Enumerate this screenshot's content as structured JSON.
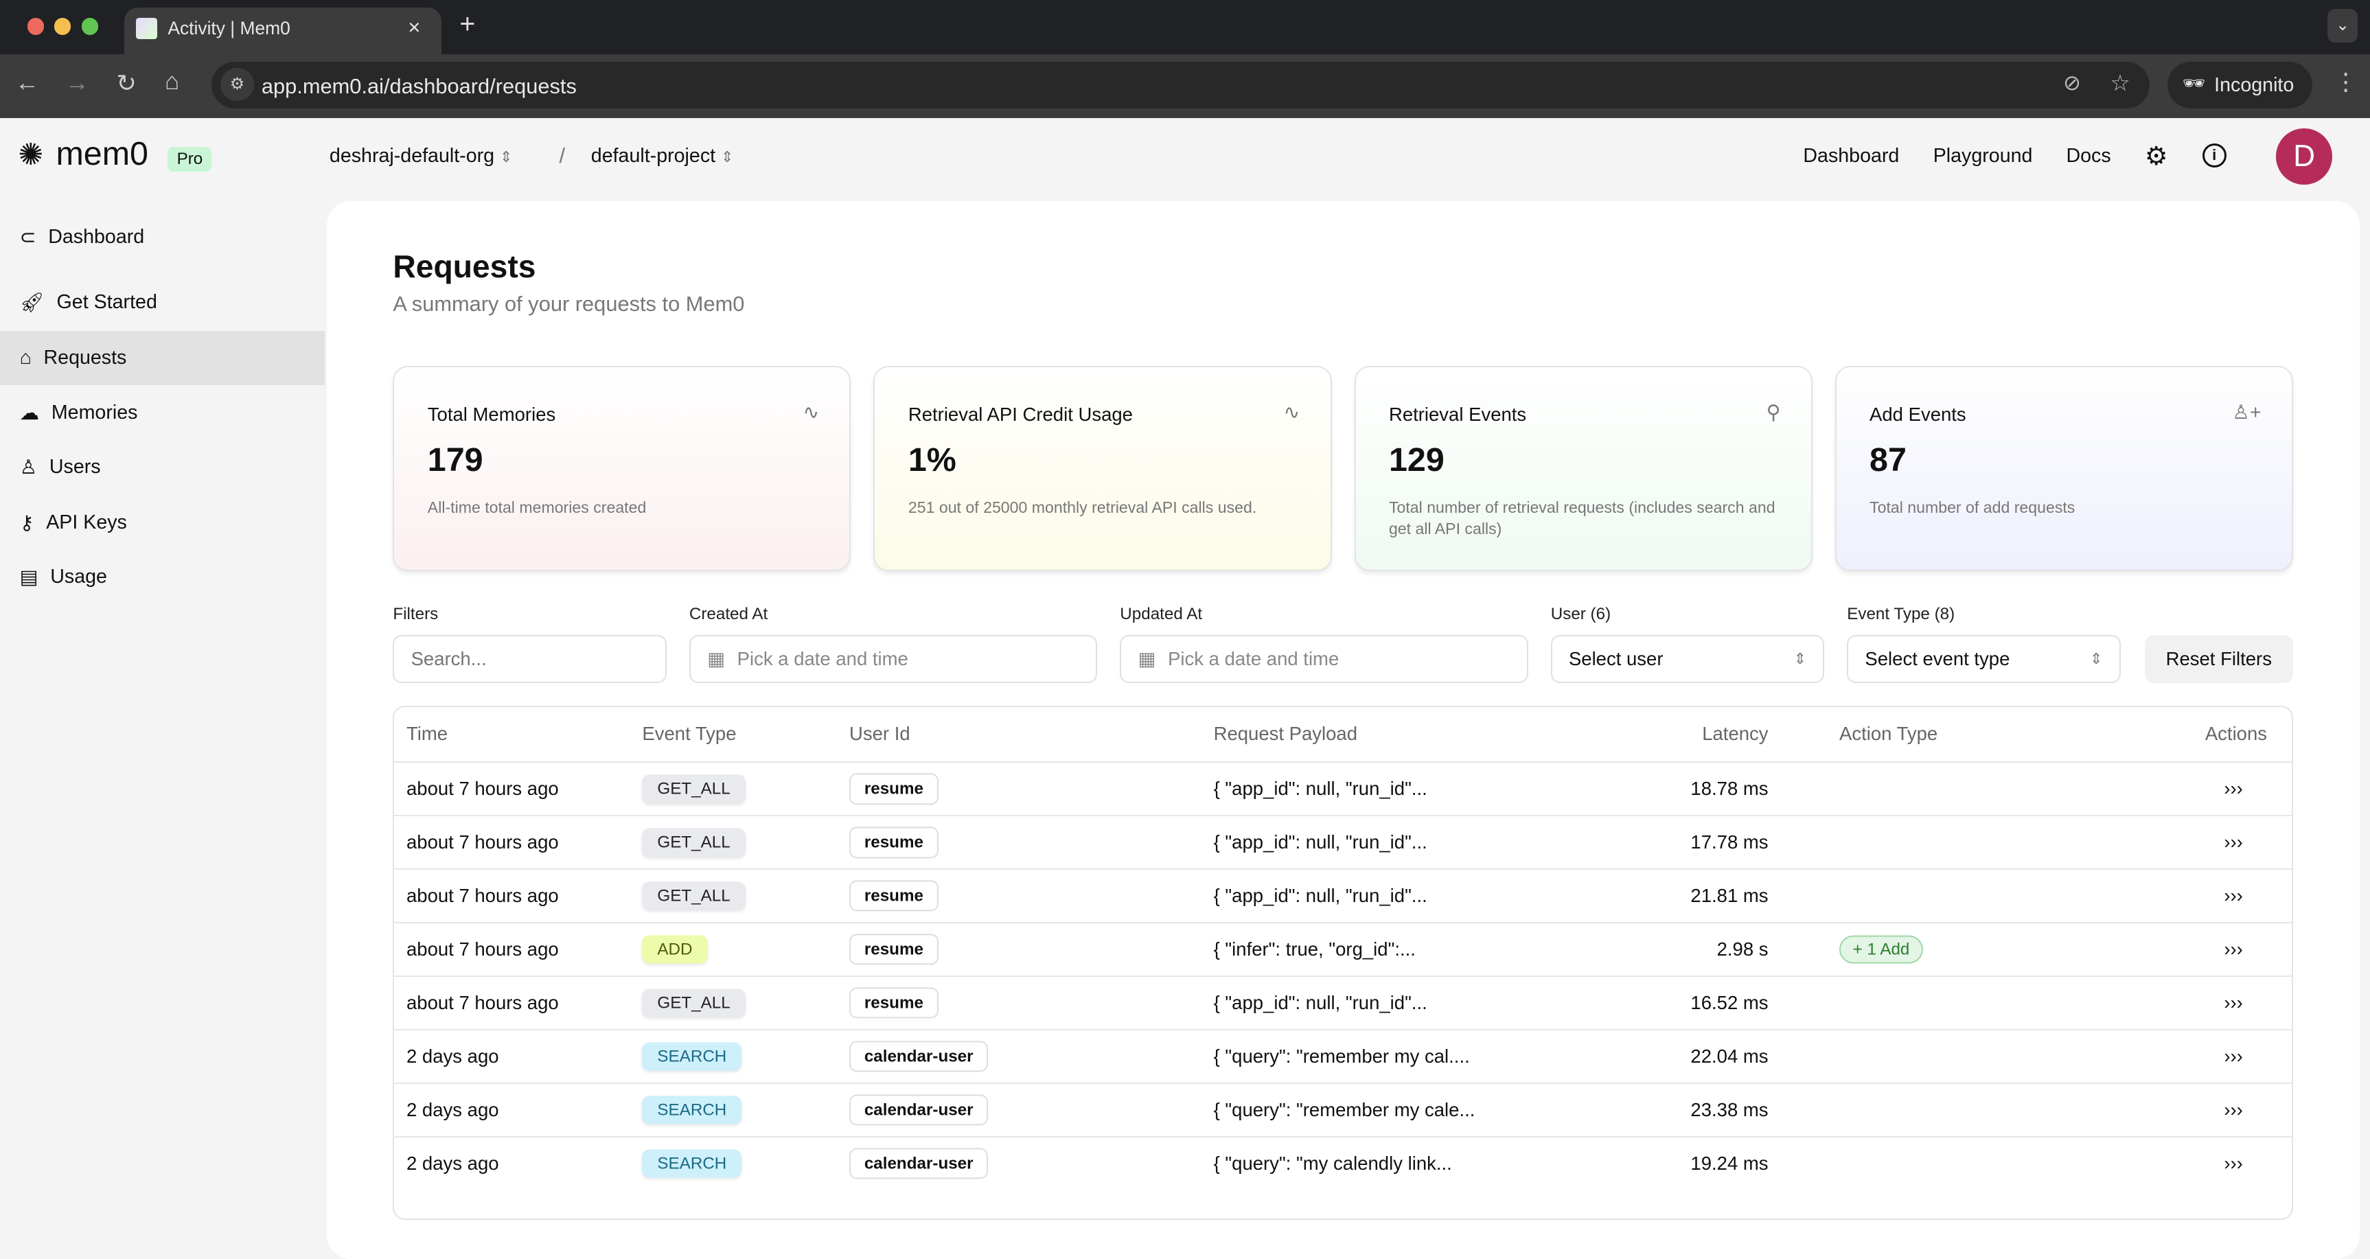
{
  "browser": {
    "tab_title": "Activity | Mem0",
    "url": "app.mem0.ai/dashboard/requests",
    "incognito_label": "Incognito"
  },
  "header": {
    "logo": "mem0",
    "plan_badge": "Pro",
    "org": "deshraj-default-org",
    "separator": "/",
    "project": "default-project",
    "nav": [
      "Dashboard",
      "Playground",
      "Docs"
    ],
    "avatar_initial": "D",
    "avatar_color": "#b52c5a"
  },
  "sidebar": {
    "items": [
      {
        "label": "Dashboard",
        "icon": "circle-chevron-left-icon"
      },
      {
        "label": "Get Started",
        "icon": "rocket-icon"
      },
      {
        "label": "Requests",
        "icon": "home-icon",
        "active": true
      },
      {
        "label": "Memories",
        "icon": "cloud-icon"
      },
      {
        "label": "Users",
        "icon": "user-icon"
      },
      {
        "label": "API Keys",
        "icon": "key-icon"
      },
      {
        "label": "Usage",
        "icon": "bar-chart-icon"
      }
    ]
  },
  "page": {
    "title": "Requests",
    "subtitle": "A summary of your requests to Mem0"
  },
  "cards": [
    {
      "title": "Total Memories",
      "value": "179",
      "desc": "All-time total memories created",
      "icon": "activity-icon",
      "tint": "#fbf0f0"
    },
    {
      "title": "Retrieval API Credit Usage",
      "value": "1%",
      "desc": "251 out of 25000 monthly retrieval API calls used.",
      "icon": "activity-icon",
      "tint": "#fdfbe8"
    },
    {
      "title": "Retrieval Events",
      "value": "129",
      "desc": "Total number of retrieval requests (includes search and get all API calls)",
      "icon": "search-icon",
      "tint": "#f0faf1"
    },
    {
      "title": "Add Events",
      "value": "87",
      "desc": "Total number of add requests",
      "icon": "user-plus-icon",
      "tint": "#eef0fc"
    }
  ],
  "filters": {
    "filters_label": "Filters",
    "search_placeholder": "Search...",
    "created_label": "Created At",
    "updated_label": "Updated At",
    "date_placeholder": "Pick a date and time",
    "user_label": "User (6)",
    "user_value": "Select user",
    "event_label": "Event Type (8)",
    "event_value": "Select event type",
    "reset_label": "Reset Filters"
  },
  "table": {
    "headers": [
      "Time",
      "Event Type",
      "User Id",
      "Request Payload",
      "Latency",
      "Action Type",
      "Actions"
    ],
    "rows": [
      {
        "time": "about 7 hours ago",
        "event": "GET_ALL",
        "user": "resume",
        "payload": "{ \"app_id\": null, \"run_id\"...",
        "latency": "18.78 ms",
        "action": "",
        "more": "›››"
      },
      {
        "time": "about 7 hours ago",
        "event": "GET_ALL",
        "user": "resume",
        "payload": "{ \"app_id\": null, \"run_id\"...",
        "latency": "17.78 ms",
        "action": "",
        "more": "›››"
      },
      {
        "time": "about 7 hours ago",
        "event": "GET_ALL",
        "user": "resume",
        "payload": "{ \"app_id\": null, \"run_id\"...",
        "latency": "21.81 ms",
        "action": "",
        "more": "›››"
      },
      {
        "time": "about 7 hours ago",
        "event": "ADD",
        "user": "resume",
        "payload": "{ \"infer\": true, \"org_id\":...",
        "latency": "2.98 s",
        "action": "+ 1 Add",
        "more": "›››"
      },
      {
        "time": "about 7 hours ago",
        "event": "GET_ALL",
        "user": "resume",
        "payload": "{ \"app_id\": null, \"run_id\"...",
        "latency": "16.52 ms",
        "action": "",
        "more": "›››"
      },
      {
        "time": "2 days ago",
        "event": "SEARCH",
        "user": "calendar-user",
        "payload": "{ \"query\": \"remember my cal....",
        "latency": "22.04 ms",
        "action": "",
        "more": "›››"
      },
      {
        "time": "2 days ago",
        "event": "SEARCH",
        "user": "calendar-user",
        "payload": "{ \"query\": \"remember my cale...",
        "latency": "23.38 ms",
        "action": "",
        "more": "›››"
      },
      {
        "time": "2 days ago",
        "event": "SEARCH",
        "user": "calendar-user",
        "payload": "{ \"query\": \"my calendly link...",
        "latency": "19.24 ms",
        "action": "",
        "more": "›››"
      }
    ]
  },
  "event_colors": {
    "GET_ALL": {
      "bg": "#e9eaee",
      "fg": "#222"
    },
    "ADD": {
      "bg": "#ecfcaa",
      "fg": "#4d5a0a"
    },
    "SEARCH": {
      "bg": "#cdf0fb",
      "fg": "#1d6a86"
    }
  }
}
